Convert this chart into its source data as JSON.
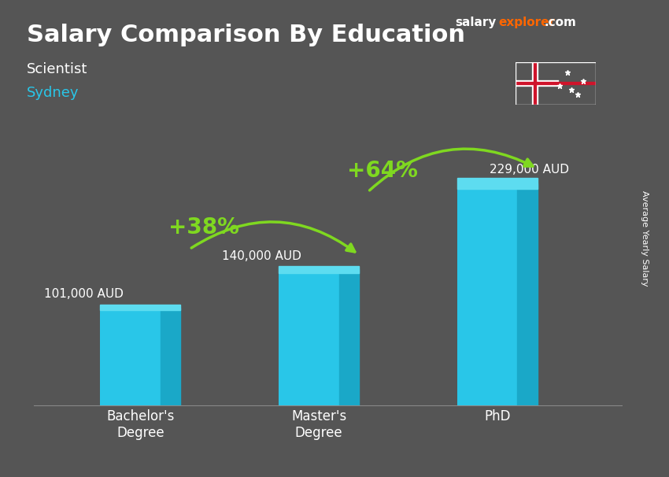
{
  "title": "Salary Comparison By Education",
  "subtitle": "Scientist",
  "location": "Sydney",
  "categories": [
    "Bachelor's\nDegree",
    "Master's\nDegree",
    "PhD"
  ],
  "values": [
    101000,
    140000,
    229000
  ],
  "labels": [
    "101,000 AUD",
    "140,000 AUD",
    "229,000 AUD"
  ],
  "pct_changes": [
    "+38%",
    "+64%"
  ],
  "bar_color": "#29C6E8",
  "bar_color_dark": "#1AA8C8",
  "bar_width": 0.45,
  "arrow_color": "#7FD820",
  "background_color": "#555555",
  "title_color": "#FFFFFF",
  "subtitle_color": "#FFFFFF",
  "location_color": "#29C6E8",
  "label_color": "#FFFFFF",
  "pct_color": "#7FD820",
  "ylabel": "Average Yearly Salary",
  "brand": "salary",
  "brand2": "explorer",
  "brand3": ".com",
  "ylim_max": 280000
}
